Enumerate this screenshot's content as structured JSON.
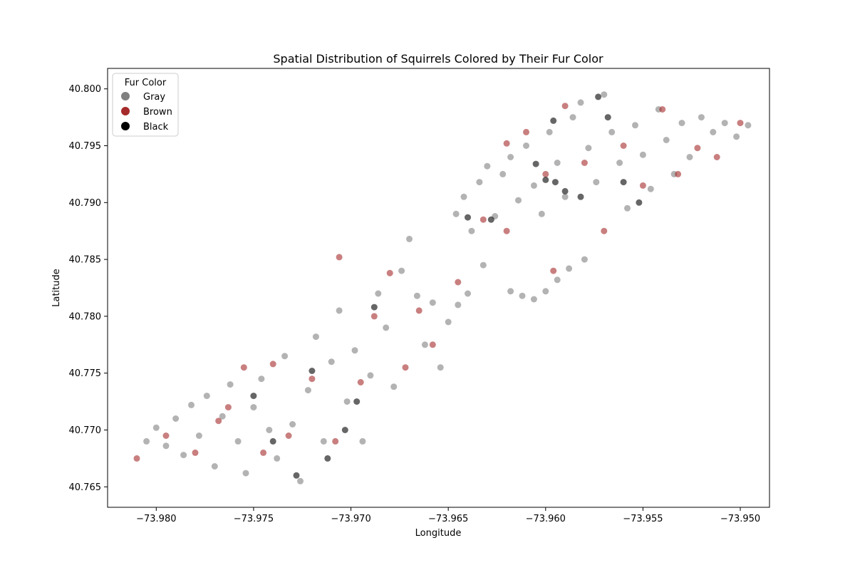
{
  "chart_data": {
    "type": "scatter",
    "title": "Spatial Distribution of Squirrels Colored by Their Fur Color",
    "xlabel": "Longitude",
    "ylabel": "Latitude",
    "xlim": [
      -73.9825,
      -73.9485
    ],
    "ylim": [
      40.7632,
      40.8018
    ],
    "x_ticks": [
      -73.98,
      -73.975,
      -73.97,
      -73.965,
      -73.96,
      -73.955,
      -73.95
    ],
    "x_tick_labels": [
      "−73.980",
      "−73.975",
      "−73.970",
      "−73.965",
      "−73.960",
      "−73.955",
      "−73.950"
    ],
    "y_ticks": [
      40.765,
      40.77,
      40.775,
      40.78,
      40.785,
      40.79,
      40.795,
      40.8
    ],
    "y_tick_labels": [
      "40.765",
      "40.770",
      "40.775",
      "40.780",
      "40.785",
      "40.790",
      "40.795",
      "40.800"
    ],
    "grid": false,
    "legend": {
      "title": "Fur Color",
      "placement": "top-left",
      "entries": [
        {
          "label": "Gray",
          "color": "#808080"
        },
        {
          "label": "Brown",
          "color": "#A52A2A"
        },
        {
          "label": "Black",
          "color": "#000000"
        }
      ]
    },
    "marker_alpha": 0.6,
    "series": [
      {
        "name": "Gray",
        "color": "#808080",
        "points": [
          [
            -73.9805,
            40.769
          ],
          [
            -73.98,
            40.7702
          ],
          [
            -73.9795,
            40.7686
          ],
          [
            -73.979,
            40.771
          ],
          [
            -73.9786,
            40.7678
          ],
          [
            -73.9782,
            40.7722
          ],
          [
            -73.9778,
            40.7695
          ],
          [
            -73.9774,
            40.773
          ],
          [
            -73.977,
            40.7668
          ],
          [
            -73.9766,
            40.7712
          ],
          [
            -73.9762,
            40.774
          ],
          [
            -73.9758,
            40.769
          ],
          [
            -73.9754,
            40.7662
          ],
          [
            -73.975,
            40.772
          ],
          [
            -73.9746,
            40.7745
          ],
          [
            -73.9742,
            40.77
          ],
          [
            -73.9738,
            40.7675
          ],
          [
            -73.9734,
            40.7765
          ],
          [
            -73.973,
            40.7705
          ],
          [
            -73.9726,
            40.7655
          ],
          [
            -73.9722,
            40.7735
          ],
          [
            -73.9718,
            40.7782
          ],
          [
            -73.9714,
            40.769
          ],
          [
            -73.971,
            40.776
          ],
          [
            -73.9706,
            40.7805
          ],
          [
            -73.9702,
            40.7725
          ],
          [
            -73.9698,
            40.777
          ],
          [
            -73.9694,
            40.769
          ],
          [
            -73.969,
            40.7748
          ],
          [
            -73.9686,
            40.782
          ],
          [
            -73.9682,
            40.779
          ],
          [
            -73.9678,
            40.7738
          ],
          [
            -73.9674,
            40.784
          ],
          [
            -73.967,
            40.7868
          ],
          [
            -73.9666,
            40.7818
          ],
          [
            -73.9662,
            40.7775
          ],
          [
            -73.9658,
            40.7812
          ],
          [
            -73.9654,
            40.7755
          ],
          [
            -73.965,
            40.7795
          ],
          [
            -73.9646,
            40.789
          ],
          [
            -73.9642,
            40.7905
          ],
          [
            -73.9638,
            40.7875
          ],
          [
            -73.9634,
            40.7918
          ],
          [
            -73.963,
            40.7932
          ],
          [
            -73.9626,
            40.7888
          ],
          [
            -73.9622,
            40.7925
          ],
          [
            -73.9618,
            40.794
          ],
          [
            -73.9614,
            40.7902
          ],
          [
            -73.961,
            40.795
          ],
          [
            -73.9606,
            40.7915
          ],
          [
            -73.9602,
            40.789
          ],
          [
            -73.9598,
            40.7962
          ],
          [
            -73.9594,
            40.7935
          ],
          [
            -73.959,
            40.7905
          ],
          [
            -73.9586,
            40.7975
          ],
          [
            -73.9582,
            40.7988
          ],
          [
            -73.9578,
            40.7948
          ],
          [
            -73.9574,
            40.7918
          ],
          [
            -73.957,
            40.7995
          ],
          [
            -73.9566,
            40.7962
          ],
          [
            -73.9562,
            40.7935
          ],
          [
            -73.9558,
            40.7895
          ],
          [
            -73.9554,
            40.7968
          ],
          [
            -73.955,
            40.7942
          ],
          [
            -73.9546,
            40.7912
          ],
          [
            -73.9542,
            40.7982
          ],
          [
            -73.9538,
            40.7955
          ],
          [
            -73.9534,
            40.7925
          ],
          [
            -73.953,
            40.797
          ],
          [
            -73.9526,
            40.794
          ],
          [
            -73.952,
            40.7975
          ],
          [
            -73.9514,
            40.7962
          ],
          [
            -73.9508,
            40.797
          ],
          [
            -73.9502,
            40.7958
          ],
          [
            -73.9496,
            40.7968
          ],
          [
            -73.9588,
            40.7842
          ],
          [
            -73.9594,
            40.7832
          ],
          [
            -73.96,
            40.7822
          ],
          [
            -73.9606,
            40.7815
          ],
          [
            -73.9612,
            40.7818
          ],
          [
            -73.9618,
            40.7822
          ],
          [
            -73.964,
            40.782
          ],
          [
            -73.9645,
            40.781
          ],
          [
            -73.9632,
            40.7845
          ],
          [
            -73.958,
            40.785
          ]
        ]
      },
      {
        "name": "Brown",
        "color": "#A52A2A",
        "points": [
          [
            -73.981,
            40.7675
          ],
          [
            -73.9795,
            40.7695
          ],
          [
            -73.978,
            40.768
          ],
          [
            -73.9768,
            40.7708
          ],
          [
            -73.9755,
            40.7755
          ],
          [
            -73.9745,
            40.768
          ],
          [
            -73.9732,
            40.7695
          ],
          [
            -73.972,
            40.7745
          ],
          [
            -73.9708,
            40.769
          ],
          [
            -73.9695,
            40.7742
          ],
          [
            -73.9688,
            40.78
          ],
          [
            -73.968,
            40.7838
          ],
          [
            -73.9672,
            40.7755
          ],
          [
            -73.9665,
            40.7805
          ],
          [
            -73.9658,
            40.7775
          ],
          [
            -73.9645,
            40.783
          ],
          [
            -73.9632,
            40.7885
          ],
          [
            -73.962,
            40.7952
          ],
          [
            -73.961,
            40.7962
          ],
          [
            -73.96,
            40.7925
          ],
          [
            -73.959,
            40.7985
          ],
          [
            -73.958,
            40.7935
          ],
          [
            -73.957,
            40.7875
          ],
          [
            -73.956,
            40.795
          ],
          [
            -73.955,
            40.7915
          ],
          [
            -73.954,
            40.7982
          ],
          [
            -73.9532,
            40.7925
          ],
          [
            -73.9522,
            40.7948
          ],
          [
            -73.9512,
            40.794
          ],
          [
            -73.95,
            40.797
          ],
          [
            -73.9596,
            40.784
          ],
          [
            -73.962,
            40.7875
          ],
          [
            -73.9706,
            40.7852
          ],
          [
            -73.974,
            40.7758
          ],
          [
            -73.9763,
            40.772
          ]
        ]
      },
      {
        "name": "Black",
        "color": "#000000",
        "points": [
          [
            -73.975,
            40.773
          ],
          [
            -73.974,
            40.769
          ],
          [
            -73.9728,
            40.766
          ],
          [
            -73.972,
            40.7752
          ],
          [
            -73.9712,
            40.7675
          ],
          [
            -73.9703,
            40.77
          ],
          [
            -73.9697,
            40.7725
          ],
          [
            -73.9688,
            40.7808
          ],
          [
            -73.964,
            40.7887
          ],
          [
            -73.9628,
            40.7885
          ],
          [
            -73.9605,
            40.7934
          ],
          [
            -73.96,
            40.792
          ],
          [
            -73.9595,
            40.7918
          ],
          [
            -73.959,
            40.791
          ],
          [
            -73.9582,
            40.7905
          ],
          [
            -73.9573,
            40.7993
          ],
          [
            -73.9568,
            40.7975
          ],
          [
            -73.956,
            40.7918
          ],
          [
            -73.9552,
            40.79
          ],
          [
            -73.9596,
            40.7972
          ]
        ]
      }
    ]
  }
}
